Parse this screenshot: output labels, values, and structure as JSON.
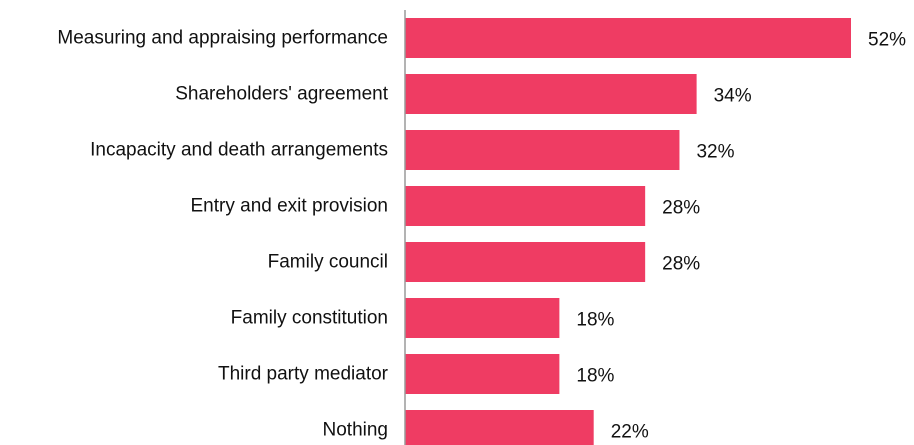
{
  "chart_data": {
    "type": "bar",
    "orientation": "horizontal",
    "title": "",
    "xlabel": "",
    "ylabel": "",
    "xlim": [
      0,
      52
    ],
    "grid": false,
    "bar_color": "#EF3C63",
    "axis_color": "#9A9A9A",
    "categories": [
      "Measuring and appraising performance",
      "Shareholders' agreement",
      "Incapacity and death arrangements",
      "Entry and exit provision",
      "Family council",
      "Family constitution",
      "Third party mediator",
      "Nothing"
    ],
    "values": [
      52,
      34,
      32,
      28,
      28,
      18,
      18,
      22
    ],
    "value_labels": [
      "52%",
      "34%",
      "32%",
      "28%",
      "28%",
      "18%",
      "18%",
      "22%"
    ]
  }
}
